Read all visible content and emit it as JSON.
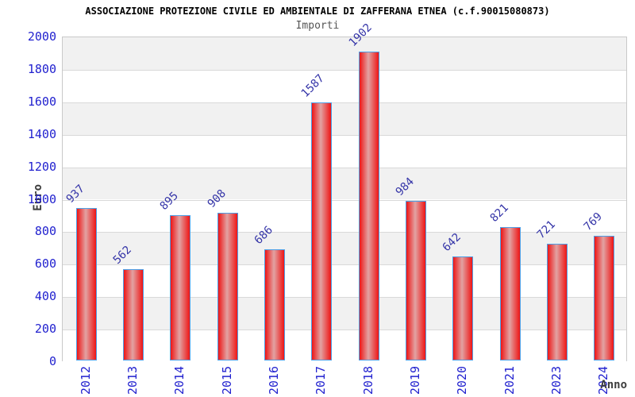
{
  "chart": {
    "title": "ASSOCIAZIONE PROTEZIONE CIVILE ED AMBIENTALE DI ZAFFERANA ETNEA (c.f.90015080873)",
    "subtitle": "Importi",
    "ylabel": "Euro",
    "xlabel": "Anno"
  },
  "chart_data": {
    "type": "bar",
    "title": "ASSOCIAZIONE PROTEZIONE CIVILE ED AMBIENTALE DI ZAFFERANA ETNEA (c.f.90015080873)",
    "subtitle": "Importi",
    "xlabel": "Anno",
    "ylabel": "Euro",
    "categories": [
      "2012",
      "2013",
      "2014",
      "2015",
      "2016",
      "2017",
      "2018",
      "2019",
      "2020",
      "2021",
      "2023",
      "2024"
    ],
    "values": [
      937,
      562,
      895,
      908,
      686,
      1587,
      1902,
      984,
      642,
      821,
      721,
      769
    ],
    "ylim": [
      0,
      2000
    ],
    "ytick_step": 200,
    "yticks": [
      0,
      200,
      400,
      600,
      800,
      1000,
      1200,
      1400,
      1600,
      1800,
      2000
    ],
    "grid": "horizontal-bands",
    "legend": "none",
    "colors": {
      "bar_edge": "#ee1515",
      "bar_center": "#e2a3a3",
      "bar_border": "#4d9fe6",
      "band_gray": "#f1f1f1",
      "band_white": "#ffffff",
      "gridline": "#d9d9d9",
      "axis_tick_text": "#2222cf",
      "value_label_text": "#3535a8",
      "title_text": "#000000",
      "subtitle_text": "#555555",
      "axis_title_text": "#3d3d3d"
    }
  }
}
